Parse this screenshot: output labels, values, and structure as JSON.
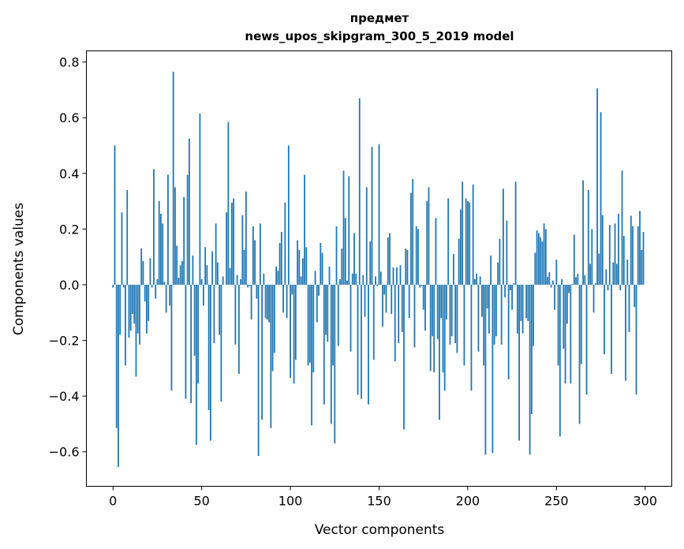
{
  "chart_data": {
    "type": "bar",
    "title": [
      "предмет",
      "news_upos_skipgram_300_5_2019 model"
    ],
    "xlabel": "Vector components",
    "ylabel": "Components values",
    "xlim": [
      -15,
      315
    ],
    "ylim": [
      -0.724,
      0.84
    ],
    "xticks": [
      0,
      50,
      100,
      150,
      200,
      250,
      300
    ],
    "xtick_labels": [
      "0",
      "50",
      "100",
      "150",
      "200",
      "250",
      "300"
    ],
    "yticks": [
      -0.6,
      -0.4,
      -0.2,
      0.0,
      0.2,
      0.4,
      0.6,
      0.8
    ],
    "ytick_labels": [
      "−0.6",
      "−0.4",
      "−0.2",
      "0.0",
      "0.2",
      "0.4",
      "0.6",
      "0.8"
    ],
    "grid": false,
    "bar_color": "#1f77b4",
    "values": [
      -0.01,
      0.5,
      -0.515,
      -0.655,
      -0.18,
      0.26,
      -0.01,
      -0.29,
      0.34,
      -0.19,
      -0.165,
      -0.105,
      -0.14,
      -0.33,
      -0.175,
      -0.215,
      0.13,
      0.085,
      -0.06,
      -0.175,
      -0.13,
      0.095,
      -0.01,
      0.415,
      -0.05,
      0.02,
      0.3,
      0.255,
      0.22,
      0.01,
      -0.1,
      0.395,
      -0.075,
      -0.38,
      0.765,
      0.35,
      0.14,
      0.025,
      0.07,
      0.085,
      0.315,
      -0.41,
      0.395,
      0.525,
      -0.425,
      0.105,
      -0.255,
      -0.575,
      -0.355,
      0.615,
      0.02,
      -0.075,
      0.135,
      0.07,
      -0.45,
      -0.56,
      0.12,
      -0.21,
      0.22,
      0.08,
      -0.18,
      -0.42,
      0.03,
      0.0,
      0.26,
      0.585,
      0.06,
      0.295,
      0.31,
      -0.215,
      0.035,
      -0.32,
      0.02,
      0.25,
      0.125,
      0.335,
      -0.01,
      -0.005,
      -0.125,
      0.21,
      0.16,
      -0.05,
      -0.615,
      0.22,
      -0.485,
      0.04,
      -0.12,
      -0.125,
      -0.135,
      -0.515,
      -0.31,
      -0.245,
      0.065,
      0.05,
      0.15,
      0.19,
      -0.1,
      0.295,
      -0.12,
      0.5,
      -0.335,
      -0.035,
      -0.355,
      -0.27,
      0.16,
      0.125,
      0.03,
      0.095,
      0.395,
      0.135,
      -0.29,
      -0.28,
      -0.505,
      -0.315,
      0.05,
      -0.135,
      -0.04,
      0.15,
      0.115,
      -0.43,
      -0.18,
      -0.205,
      0.065,
      -0.5,
      -0.29,
      -0.57,
      0.21,
      -0.22,
      0.02,
      0.13,
      0.41,
      0.24,
      0.015,
      0.39,
      -0.24,
      0.04,
      0.185,
      0.04,
      -0.395,
      0.67,
      -0.41,
      0.035,
      -0.115,
      0.35,
      -0.43,
      0.155,
      0.495,
      -0.27,
      0.03,
      -0.005,
      0.505,
      0.047,
      -0.15,
      -0.035,
      -0.1,
      0.17,
      0.185,
      -0.105,
      0.062,
      -0.275,
      0.062,
      -0.21,
      0.07,
      -0.17,
      -0.52,
      0.13,
      0.125,
      -0.12,
      0.33,
      0.38,
      -0.225,
      0.21,
      0.2,
      -0.01,
      -0.005,
      -0.09,
      -0.165,
      0.3,
      0.35,
      -0.31,
      -0.185,
      -0.315,
      0.24,
      -0.195,
      -0.485,
      -0.12,
      -0.315,
      -0.38,
      -0.125,
      0.31,
      -0.215,
      -0.185,
      0.11,
      -0.21,
      -0.245,
      0.165,
      0.27,
      0.37,
      -0.29,
      0.31,
      0.3,
      0.295,
      -0.38,
      0.36,
      0.02,
      0.04,
      -0.24,
      0.03,
      -0.115,
      -0.29,
      -0.61,
      -0.085,
      -0.175,
      0.105,
      -0.605,
      -0.215,
      -0.185,
      0.08,
      0.165,
      -0.215,
      0.345,
      -0.045,
      0.23,
      -0.34,
      -0.02,
      -0.09,
      0.005,
      0.37,
      -0.175,
      -0.56,
      -0.13,
      -0.175,
      0.0,
      -0.12,
      -0.13,
      -0.61,
      -0.465,
      -0.22,
      0.115,
      0.195,
      0.185,
      0.17,
      0.155,
      0.22,
      0.2,
      0.028,
      0.045,
      -0.01,
      0.015,
      -0.09,
      0.09,
      -0.29,
      -0.545,
      0.02,
      -0.23,
      -0.355,
      -0.14,
      -0.03,
      -0.355,
      0.003,
      0.18,
      0.027,
      0.04,
      -0.5,
      -0.285,
      0.375,
      0.035,
      -0.395,
      0.34,
      0.075,
      0.2,
      -0.1,
      0.005,
      0.705,
      0.112,
      0.62,
      0.25,
      -0.25,
      0.055,
      -0.02,
      0.215,
      -0.32,
      0.08,
      0.22,
      0.075,
      0.255,
      -0.02,
      0.41,
      0.175,
      -0.345,
      0.09,
      -0.17,
      0.248,
      0.21,
      -0.08,
      -0.395,
      0.21,
      0.265,
      0.125,
      0.19
    ]
  }
}
